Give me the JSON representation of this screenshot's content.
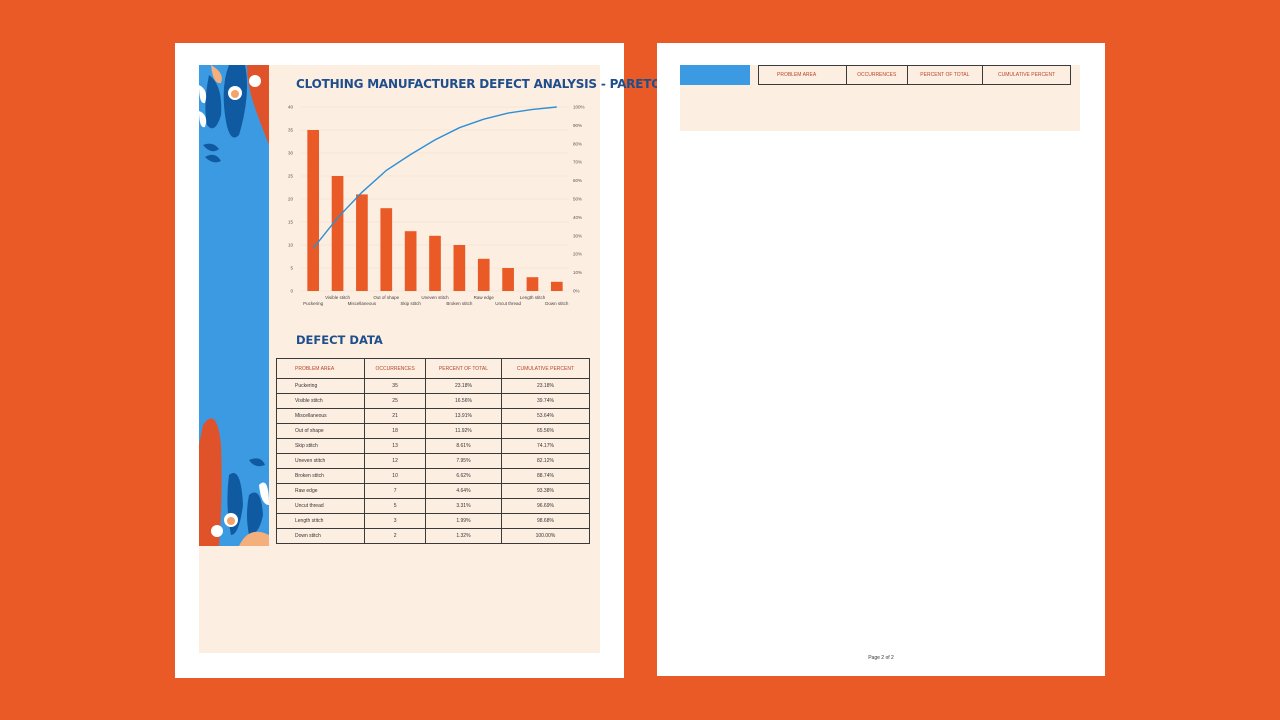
{
  "page1": {
    "title": "CLOTHING MANUFACTURER DEFECT ANALYSIS - PARETO",
    "section_title": "DEFECT DATA",
    "table": {
      "headers": [
        "PROBLEM AREA",
        "OCCURRENCES",
        "PERCENT OF TOTAL",
        "CUMULATIVE PERCENT"
      ],
      "rows": [
        [
          "Puckering",
          "35",
          "23.18%",
          "23.18%"
        ],
        [
          "Visible stitch",
          "25",
          "16.56%",
          "39.74%"
        ],
        [
          "Miscellaneous",
          "21",
          "13.91%",
          "53.64%"
        ],
        [
          "Out of shape",
          "18",
          "11.92%",
          "65.56%"
        ],
        [
          "Skip stitch",
          "13",
          "8.61%",
          "74.17%"
        ],
        [
          "Uneven stitch",
          "12",
          "7.95%",
          "82.12%"
        ],
        [
          "Broken stitch",
          "10",
          "6.62%",
          "88.74%"
        ],
        [
          "Raw edge",
          "7",
          "4.64%",
          "93.38%"
        ],
        [
          "Uncut thread",
          "5",
          "3.31%",
          "96.69%"
        ],
        [
          "Length stitch",
          "3",
          "1.99%",
          "98.68%"
        ],
        [
          "Down stitch",
          "2",
          "1.32%",
          "100.00%"
        ]
      ]
    }
  },
  "page2": {
    "table": {
      "headers": [
        "PROBLEM AREA",
        "OCCURRENCES",
        "PERCENT OF TOTAL",
        "CUMULATIVE PERCENT"
      ]
    },
    "footer": "Page 2 of 2"
  },
  "colors": {
    "background": "#e95a27",
    "bar": "#e95a27",
    "line": "#2d8fd5",
    "sidebar_blue": "#3b9ae1",
    "panel": "#fdeee2",
    "title": "#1f4e8c"
  },
  "chart_data": {
    "type": "bar",
    "title": "",
    "categories": [
      "Puckering",
      "Visible stitch",
      "Miscellaneous",
      "Out of shape",
      "Skip stitch",
      "Uneven stitch",
      "Broken stitch",
      "Raw edge",
      "Uncut thread",
      "Length stitch",
      "Down stitch"
    ],
    "series": [
      {
        "name": "Occurrences",
        "type": "bar",
        "axis": "left",
        "values": [
          35,
          25,
          21,
          18,
          13,
          12,
          10,
          7,
          5,
          3,
          2
        ]
      },
      {
        "name": "Cumulative Percent",
        "type": "line",
        "axis": "right",
        "values": [
          23.18,
          39.74,
          53.64,
          65.56,
          74.17,
          82.12,
          88.74,
          93.38,
          96.69,
          98.68,
          100.0
        ]
      }
    ],
    "ylim": [
      0,
      40
    ],
    "y_ticks": [
      "0",
      "5",
      "10",
      "15",
      "20",
      "25",
      "30",
      "35",
      "40"
    ],
    "y2lim": [
      0,
      100
    ],
    "y2_ticks": [
      "0%",
      "10%",
      "20%",
      "30%",
      "40%",
      "50%",
      "60%",
      "70%",
      "80%",
      "90%",
      "100%"
    ],
    "xlabel": "",
    "ylabel": "",
    "grid": true,
    "legend": "none"
  }
}
